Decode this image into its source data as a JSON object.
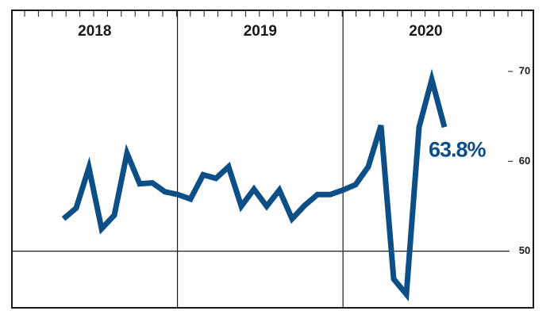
{
  "chart_data": {
    "type": "line",
    "sections": [
      "2018",
      "2019",
      "2020"
    ],
    "categories": [
      null,
      null,
      null,
      null,
      null,
      null,
      null,
      null,
      null,
      null,
      null,
      null,
      null,
      null,
      null,
      null,
      null,
      null,
      null,
      null,
      null,
      null,
      null,
      null,
      null,
      null,
      null,
      null,
      null,
      null,
      null
    ],
    "values": [
      53.6,
      54.8,
      59.3,
      52.5,
      54.0,
      60.9,
      57.5,
      57.6,
      56.6,
      56.3,
      55.8,
      58.5,
      58.1,
      59.4,
      55.0,
      56.9,
      55.0,
      56.8,
      53.6,
      55.1,
      56.3,
      56.3,
      56.8,
      57.4,
      59.4,
      64.0,
      46.9,
      45.2,
      63.8,
      69.1,
      63.8
    ],
    "end_label": "63.8%",
    "color": "#0b4f86",
    "ylim": [
      43.7,
      76.8
    ],
    "yticks": [
      50,
      60,
      70
    ],
    "baseline": 50
  }
}
